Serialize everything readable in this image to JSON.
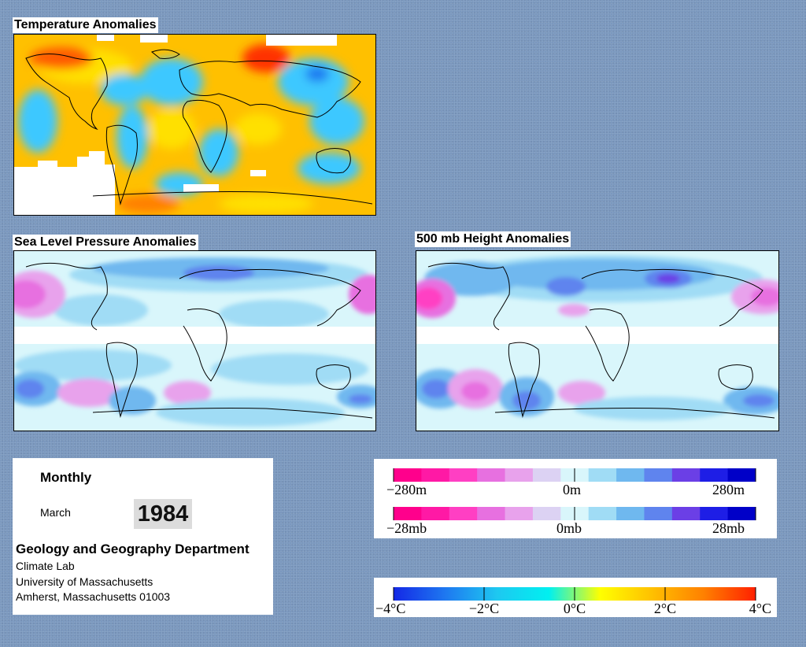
{
  "panels": {
    "temperature": {
      "title": "Temperature Anomalies"
    },
    "slp": {
      "title": "Sea Level Pressure Anomalies"
    },
    "height500": {
      "title": "500 mb Height Anomalies"
    }
  },
  "info": {
    "frequency": "Monthly",
    "month": "March",
    "year": "1984",
    "department": "Geology and Geography Department",
    "lab": "Climate Lab",
    "university": "University of Massachusetts",
    "address": "Amherst, Massachusetts 01003"
  },
  "legends": {
    "height": {
      "colors": [
        "#ff008c",
        "#ff19a5",
        "#ff3fc3",
        "#e770e0",
        "#e8a2ec",
        "#dcd2f3",
        "#d9f6fb",
        "#a0dcf5",
        "#6fb8ef",
        "#5f84ee",
        "#6b3fe6",
        "#1e1ee6",
        "#0000c8"
      ],
      "labels": {
        "left": "−280m",
        "center": "0m",
        "right": "280m"
      }
    },
    "pressure": {
      "colors": [
        "#ff008c",
        "#ff19a5",
        "#ff3fc3",
        "#e770e0",
        "#e8a2ec",
        "#dcd2f3",
        "#d9f6fb",
        "#a0dcf5",
        "#6fb8ef",
        "#5f84ee",
        "#6b3fe6",
        "#1e1ee6",
        "#0000c8"
      ],
      "labels": {
        "left": "−28mb",
        "center": "0mb",
        "right": "28mb"
      }
    },
    "temperature": {
      "gradient": [
        "#1428e6",
        "#1e78f0",
        "#1ec8f0",
        "#00f0f0",
        "#ffff00",
        "#ffc000",
        "#ff8000",
        "#ff2000"
      ],
      "labels": [
        "−4°C",
        "−2°C",
        "0°C",
        "2°C",
        "4°C"
      ]
    }
  },
  "colors": {
    "background": "#7b98be",
    "warm": "#ffb400",
    "cool": "#3cc8ff",
    "low": "#6b7df0",
    "high": "#e87ad8"
  }
}
